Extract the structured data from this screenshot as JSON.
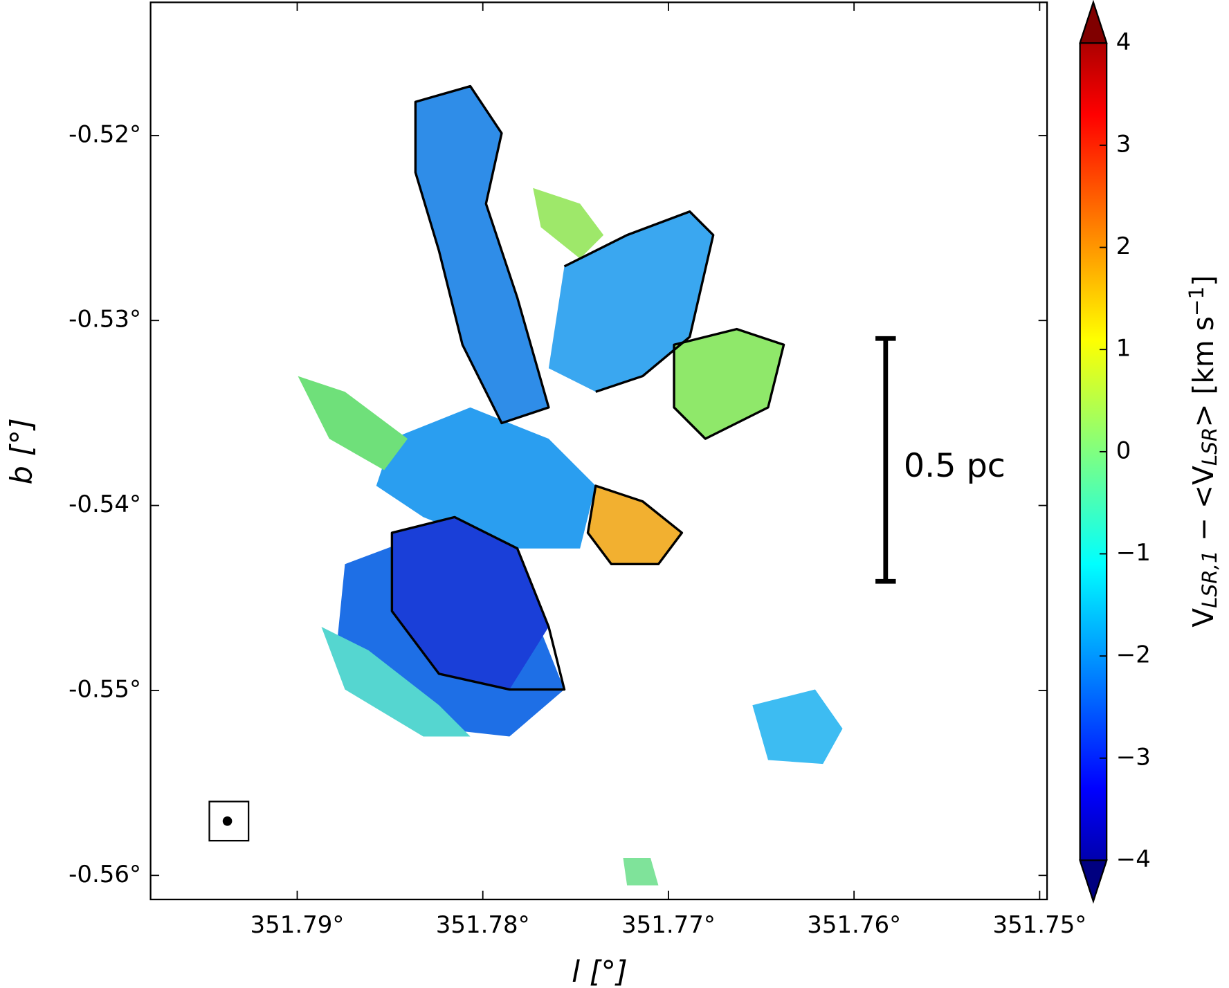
{
  "chart_data": {
    "type": "image",
    "xlabel": "l [°]",
    "ylabel": "b [°]",
    "colorbar_label": [
      "V",
      "LSR,1",
      " − <V",
      "LSR",
      "> [km s",
      "−1",
      "]"
    ],
    "scalebar_label": "0.5 pc",
    "colormap": "jet",
    "xlim": [
      351.7979,
      351.7496
    ],
    "ylim": [
      -0.5613,
      -0.5128
    ],
    "xticks": [
      {
        "value": 351.79,
        "label": "351.79°"
      },
      {
        "value": 351.78,
        "label": "351.78°"
      },
      {
        "value": 351.77,
        "label": "351.77°"
      },
      {
        "value": 351.76,
        "label": "351.76°"
      },
      {
        "value": 351.75,
        "label": "351.75°"
      }
    ],
    "yticks": [
      {
        "value": -0.52,
        "label": "-0.52°"
      },
      {
        "value": -0.53,
        "label": "-0.53°"
      },
      {
        "value": -0.54,
        "label": "-0.54°"
      },
      {
        "value": -0.55,
        "label": "-0.55°"
      },
      {
        "value": -0.56,
        "label": "-0.56°"
      }
    ],
    "clim": [
      -4,
      4
    ],
    "cticks": [
      {
        "value": -4,
        "label": "−4"
      },
      {
        "value": -3,
        "label": "−3"
      },
      {
        "value": -2,
        "label": "−2"
      },
      {
        "value": -1,
        "label": "−1"
      },
      0,
      1,
      2,
      3,
      4
    ]
  }
}
